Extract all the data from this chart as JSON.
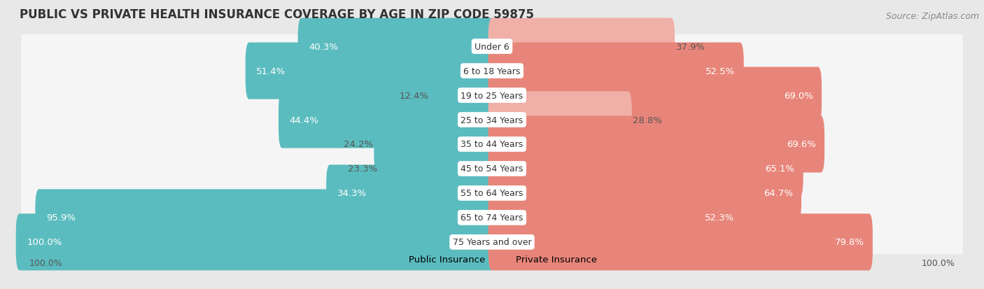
{
  "title": "Public vs Private Health Insurance Coverage by Age in Zip Code 59875",
  "source": "Source: ZipAtlas.com",
  "categories": [
    "Under 6",
    "6 to 18 Years",
    "19 to 25 Years",
    "25 to 34 Years",
    "35 to 44 Years",
    "45 to 54 Years",
    "55 to 64 Years",
    "65 to 74 Years",
    "75 Years and over"
  ],
  "public_values": [
    40.3,
    51.4,
    12.4,
    44.4,
    24.2,
    23.3,
    34.3,
    95.9,
    100.0
  ],
  "private_values": [
    37.9,
    52.5,
    69.0,
    28.8,
    69.6,
    65.1,
    64.7,
    52.3,
    79.8
  ],
  "public_color": "#5bbcbf",
  "private_color": "#e8857a",
  "private_color_light": "#f0b0a8",
  "background_color": "#e8e8e8",
  "bar_background": "#f5f5f5",
  "bar_height": 0.72,
  "max_value": 100.0,
  "legend_public": "Public Insurance",
  "legend_private": "Private Insurance",
  "title_fontsize": 12,
  "label_fontsize": 9.5,
  "category_fontsize": 9,
  "source_fontsize": 9,
  "axis_label_fontsize": 9,
  "pub_inside_threshold": 20,
  "priv_inside_threshold": 40
}
